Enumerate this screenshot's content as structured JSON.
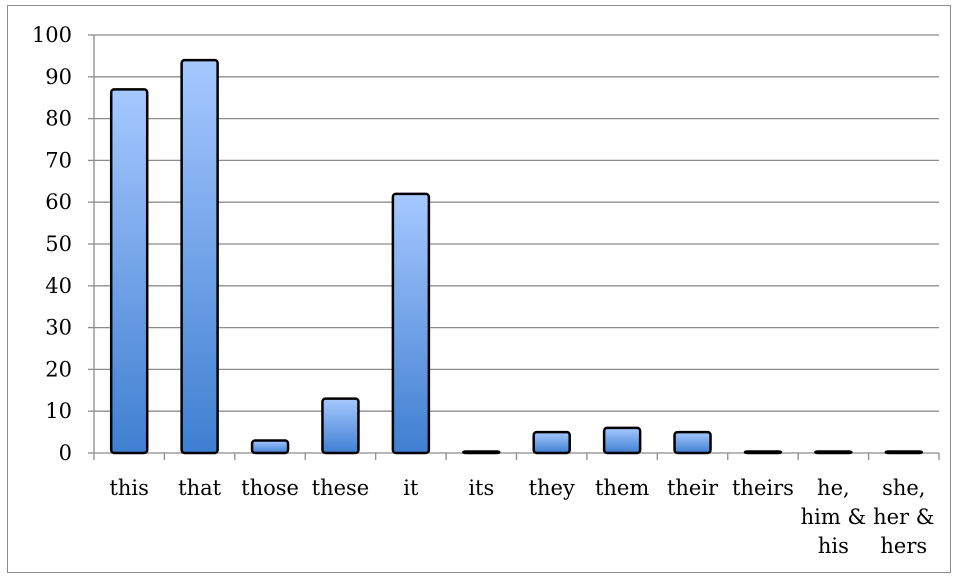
{
  "chart_data": {
    "type": "bar",
    "title": "",
    "xlabel": "",
    "ylabel": "",
    "ylim": [
      0,
      100
    ],
    "yticks": [
      0,
      10,
      20,
      30,
      40,
      50,
      60,
      70,
      80,
      90,
      100
    ],
    "grid": true,
    "legend": "none",
    "categories": [
      "this",
      "that",
      "those",
      "these",
      "it",
      "its",
      "they",
      "them",
      "their",
      "theirs",
      "he, him & his",
      "she, her & hers"
    ],
    "category_lines": [
      [
        "this"
      ],
      [
        "that"
      ],
      [
        "those"
      ],
      [
        "these"
      ],
      [
        "it"
      ],
      [
        "its"
      ],
      [
        "they"
      ],
      [
        "them"
      ],
      [
        "their"
      ],
      [
        "theirs"
      ],
      [
        "he,",
        "him &",
        "his"
      ],
      [
        "she,",
        "her &",
        "hers"
      ]
    ],
    "values": [
      87,
      94,
      3,
      13,
      62,
      0,
      5,
      6,
      5,
      0,
      0,
      0
    ],
    "colors": {
      "bar_top": "#a6c8ff",
      "bar_bottom": "#3f7fd1",
      "bar_edge": "#000000",
      "grid": "#8c8c8c",
      "axis": "#8c8c8c"
    }
  }
}
